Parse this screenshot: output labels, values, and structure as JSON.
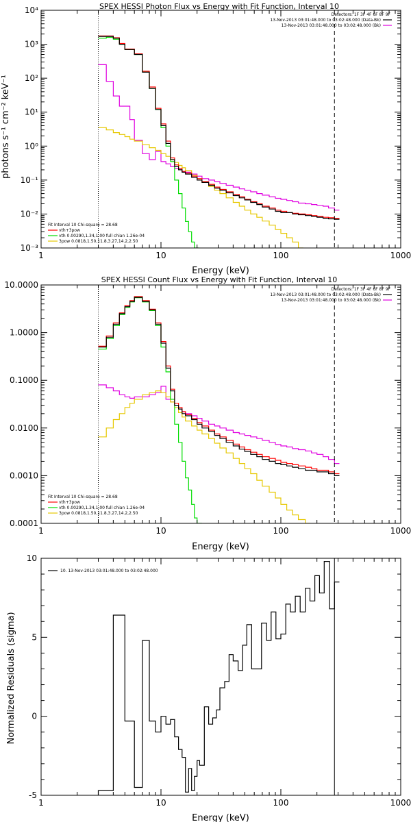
{
  "colors": {
    "data": "#000000",
    "total": "#ff0000",
    "thermal": "#00dd00",
    "nonthermal": "#e6c800",
    "background": "#e000e0",
    "frame": "#000000"
  },
  "chart_data": [
    {
      "type": "line",
      "title": "SPEX HESSI Photon Flux vs Energy with Fit Function, Interval 10",
      "xlabel": "Energy (keV)",
      "ylabel": "photons s⁻¹ cm⁻² keV⁻¹",
      "xscale": "log",
      "yscale": "log",
      "xlim": [
        1,
        1000
      ],
      "ylim": [
        0.001,
        10000
      ],
      "xticks": [
        "1",
        "10",
        "100",
        "1000"
      ],
      "yticks": [
        "10⁻³",
        "10⁻²",
        "10⁻¹",
        "10⁰",
        "10¹",
        "10²",
        "10³",
        "10⁴"
      ],
      "vlines": [
        {
          "x": 3,
          "style": "dotted"
        },
        {
          "x": 280,
          "style": "dashed"
        }
      ],
      "legend_top_right": [
        "Detectors: 1F 3F 4F 6F 8F 9F",
        "13-Nov-2013 03:01:48.000 to 03:02:48.000 (Data-Bk)",
        "13-Nov-2013 03:01:48.000 to 03:02:48.000 (Bk)"
      ],
      "legend_bottom_left": [
        "Fit Interval 10   Chi-square = 28.68",
        "vth+3pow",
        "vth 0.00290,1.34,1.00  full chian 1.26e-04",
        "3pow 0.0818,1.50,11.8,3.27,14.2,2.50"
      ],
      "series": [
        {
          "role": "data",
          "x": [
            3,
            3.5,
            4,
            4.5,
            5,
            5.5,
            6,
            7,
            8,
            9,
            10,
            11,
            12,
            13,
            14,
            15,
            16,
            18,
            20,
            22,
            25,
            28,
            31,
            35,
            40,
            45,
            50,
            56,
            63,
            70,
            80,
            90,
            100,
            112,
            125,
            140,
            160,
            180,
            200,
            225,
            250,
            280
          ],
          "values": [
            1700,
            1700,
            1500,
            1000,
            700,
            700,
            500,
            150,
            50,
            12,
            4,
            1.2,
            0.4,
            0.25,
            0.2,
            0.17,
            0.15,
            0.12,
            0.1,
            0.085,
            0.07,
            0.058,
            0.05,
            0.042,
            0.035,
            0.03,
            0.026,
            0.022,
            0.019,
            0.016,
            0.014,
            0.012,
            0.011,
            0.011,
            0.01,
            0.0095,
            0.009,
            0.0085,
            0.008,
            0.0075,
            0.0072,
            0.007
          ]
        },
        {
          "role": "total",
          "x": [
            3,
            3.5,
            4,
            4.5,
            5,
            5.5,
            6,
            7,
            8,
            9,
            10,
            11,
            12,
            13,
            14,
            15,
            16,
            18,
            20,
            22,
            25,
            28,
            31,
            35,
            40,
            45,
            50,
            56,
            63,
            70,
            80,
            90,
            100,
            112,
            125,
            140,
            160,
            180,
            200,
            225,
            250,
            280
          ],
          "values": [
            1750,
            1750,
            1550,
            1050,
            720,
            720,
            520,
            160,
            55,
            13,
            4.5,
            1.4,
            0.45,
            0.28,
            0.22,
            0.18,
            0.16,
            0.13,
            0.11,
            0.09,
            0.075,
            0.062,
            0.053,
            0.045,
            0.038,
            0.032,
            0.027,
            0.023,
            0.02,
            0.017,
            0.015,
            0.013,
            0.012,
            0.011,
            0.0105,
            0.01,
            0.0095,
            0.009,
            0.0085,
            0.008,
            0.0078,
            0.0075
          ]
        },
        {
          "role": "thermal",
          "x": [
            3,
            3.5,
            4,
            4.5,
            5,
            5.5,
            6,
            7,
            8,
            9,
            10,
            11,
            12,
            13,
            14,
            15,
            16,
            17,
            18,
            19
          ],
          "values": [
            1500,
            1600,
            1400,
            1000,
            700,
            700,
            500,
            150,
            50,
            12,
            3.5,
            1,
            0.35,
            0.1,
            0.04,
            0.015,
            0.006,
            0.003,
            0.0015,
            0.001
          ]
        },
        {
          "role": "nonthermal",
          "x": [
            3,
            3.5,
            4,
            4.5,
            5,
            5.5,
            6,
            7,
            8,
            9,
            10,
            11,
            12,
            13,
            14,
            15,
            16,
            18,
            20,
            22,
            25,
            28,
            31,
            35,
            40,
            45,
            50,
            56,
            63,
            70,
            80,
            90,
            100,
            112,
            125,
            140
          ],
          "values": [
            3.5,
            3,
            2.5,
            2.2,
            1.9,
            1.6,
            1.4,
            1.1,
            0.9,
            0.75,
            0.6,
            0.5,
            0.4,
            0.33,
            0.27,
            0.23,
            0.19,
            0.14,
            0.11,
            0.085,
            0.065,
            0.05,
            0.04,
            0.03,
            0.022,
            0.017,
            0.013,
            0.01,
            0.008,
            0.0062,
            0.0047,
            0.0035,
            0.0027,
            0.002,
            0.0015,
            0.001
          ]
        },
        {
          "role": "background",
          "x": [
            3,
            3.5,
            4,
            4.5,
            5,
            5.5,
            6,
            7,
            8,
            9,
            10,
            11,
            12,
            13,
            14,
            15,
            16,
            18,
            20,
            22,
            25,
            28,
            31,
            35,
            40,
            45,
            50,
            56,
            63,
            70,
            80,
            90,
            100,
            112,
            125,
            140,
            160,
            180,
            200,
            225,
            250,
            280
          ],
          "values": [
            250,
            80,
            30,
            15,
            15,
            6,
            1.5,
            0.6,
            0.4,
            0.7,
            0.35,
            0.3,
            0.25,
            0.22,
            0.2,
            0.18,
            0.17,
            0.15,
            0.13,
            0.11,
            0.1,
            0.09,
            0.08,
            0.07,
            0.062,
            0.055,
            0.05,
            0.045,
            0.04,
            0.036,
            0.032,
            0.029,
            0.027,
            0.025,
            0.023,
            0.021,
            0.02,
            0.019,
            0.018,
            0.017,
            0.015,
            0.013
          ]
        }
      ]
    },
    {
      "type": "line",
      "title": "SPEX HESSI Count Flux vs Energy with Fit Function, Interval 10",
      "xlabel": "Energy (keV)",
      "ylabel": "",
      "xscale": "log",
      "yscale": "log",
      "xlim": [
        1,
        1000
      ],
      "ylim": [
        0.0001,
        10
      ],
      "xticks": [
        "1",
        "10",
        "100",
        "1000"
      ],
      "yticks": [
        "0.0001",
        "0.0010",
        "0.0100",
        "0.1000",
        "1.0000",
        "10.0000"
      ],
      "vlines": [
        {
          "x": 3,
          "style": "dotted"
        },
        {
          "x": 280,
          "style": "dashed"
        }
      ],
      "legend_top_right": [
        "Detectors: 1F 3F 4F 6F 8F 9F",
        "13-Nov-2013 03:01:48.000 to 03:02:48.000 (Data-Bk)",
        "13-Nov-2013 03:01:48.000 to 03:02:48.000 (Bk)"
      ],
      "legend_bottom_left": [
        "Fit Interval 10   Chi-square = 28.68",
        "vth+3pow",
        "vth 0.00290,1.34,1.00  full chian 1.26e-04",
        "3pow 0.0818,1.50,11.8,3.27,14.2,2.50"
      ],
      "series": [
        {
          "role": "data",
          "x": [
            3,
            3.5,
            4,
            4.5,
            5,
            5.5,
            6,
            7,
            8,
            9,
            10,
            11,
            12,
            13,
            14,
            15,
            16,
            18,
            20,
            22,
            25,
            28,
            31,
            35,
            40,
            45,
            50,
            56,
            63,
            70,
            80,
            90,
            100,
            112,
            125,
            140,
            160,
            180,
            200,
            225,
            250,
            280
          ],
          "values": [
            0.5,
            0.8,
            1.5,
            2.5,
            3.5,
            4.5,
            5.5,
            4.5,
            3,
            1.5,
            0.6,
            0.18,
            0.06,
            0.03,
            0.025,
            0.02,
            0.018,
            0.015,
            0.012,
            0.01,
            0.0085,
            0.007,
            0.006,
            0.005,
            0.0042,
            0.0036,
            0.0032,
            0.0028,
            0.0025,
            0.0022,
            0.002,
            0.0018,
            0.0017,
            0.0016,
            0.0015,
            0.0014,
            0.0013,
            0.0013,
            0.0012,
            0.0012,
            0.0011,
            0.001
          ]
        },
        {
          "role": "total",
          "x": [
            3,
            3.5,
            4,
            4.5,
            5,
            5.5,
            6,
            7,
            8,
            9,
            10,
            11,
            12,
            13,
            14,
            15,
            16,
            18,
            20,
            22,
            25,
            28,
            31,
            35,
            40,
            45,
            50,
            56,
            63,
            70,
            80,
            90,
            100,
            112,
            125,
            140,
            160,
            180,
            200,
            225,
            250,
            280
          ],
          "values": [
            0.52,
            0.85,
            1.6,
            2.6,
            3.7,
            4.7,
            5.7,
            4.7,
            3.1,
            1.6,
            0.65,
            0.2,
            0.065,
            0.033,
            0.027,
            0.022,
            0.019,
            0.016,
            0.013,
            0.011,
            0.009,
            0.0075,
            0.0065,
            0.0055,
            0.0046,
            0.004,
            0.0035,
            0.0031,
            0.0028,
            0.0025,
            0.0023,
            0.0021,
            0.0019,
            0.0018,
            0.0017,
            0.0016,
            0.0015,
            0.0014,
            0.0013,
            0.0013,
            0.0012,
            0.0011
          ]
        },
        {
          "role": "thermal",
          "x": [
            3,
            3.5,
            4,
            4.5,
            5,
            5.5,
            6,
            7,
            8,
            9,
            10,
            11,
            12,
            13,
            14,
            15,
            16,
            17,
            18,
            19,
            20
          ],
          "values": [
            0.45,
            0.75,
            1.4,
            2.4,
            3.4,
            4.4,
            5.4,
            4.4,
            2.9,
            1.4,
            0.5,
            0.15,
            0.04,
            0.012,
            0.005,
            0.002,
            0.0009,
            0.0005,
            0.00025,
            0.00013,
            0.0001
          ]
        },
        {
          "role": "nonthermal",
          "x": [
            3,
            3.5,
            4,
            4.5,
            5,
            5.5,
            6,
            7,
            8,
            9,
            10,
            11,
            12,
            13,
            14,
            15,
            16,
            18,
            20,
            22,
            25,
            28,
            31,
            35,
            40,
            45,
            50,
            56,
            63,
            70,
            80,
            90,
            100,
            112,
            125,
            140,
            160
          ],
          "values": [
            0.0065,
            0.01,
            0.015,
            0.02,
            0.027,
            0.033,
            0.04,
            0.05,
            0.055,
            0.06,
            0.055,
            0.045,
            0.035,
            0.027,
            0.021,
            0.017,
            0.014,
            0.011,
            0.009,
            0.0075,
            0.006,
            0.0048,
            0.0038,
            0.003,
            0.0023,
            0.0018,
            0.0014,
            0.0011,
            0.0008,
            0.0006,
            0.00045,
            0.00034,
            0.00025,
            0.00019,
            0.00015,
            0.00012,
            0.0001
          ]
        },
        {
          "role": "background",
          "x": [
            3,
            3.5,
            4,
            4.5,
            5,
            5.5,
            6,
            7,
            8,
            9,
            10,
            11,
            12,
            13,
            14,
            15,
            16,
            18,
            20,
            22,
            25,
            28,
            31,
            35,
            40,
            45,
            50,
            56,
            63,
            70,
            80,
            90,
            100,
            112,
            125,
            140,
            160,
            180,
            200,
            225,
            250,
            280
          ],
          "values": [
            0.08,
            0.07,
            0.06,
            0.05,
            0.045,
            0.042,
            0.045,
            0.045,
            0.05,
            0.055,
            0.075,
            0.04,
            0.035,
            0.03,
            0.025,
            0.022,
            0.02,
            0.018,
            0.016,
            0.014,
            0.012,
            0.011,
            0.01,
            0.009,
            0.008,
            0.0075,
            0.007,
            0.0065,
            0.006,
            0.0055,
            0.005,
            0.0045,
            0.0042,
            0.004,
            0.0037,
            0.0035,
            0.0033,
            0.003,
            0.0028,
            0.0025,
            0.0022,
            0.0018
          ]
        }
      ]
    },
    {
      "type": "line",
      "title": "",
      "xlabel": "Energy (keV)",
      "ylabel": "Normalized Residuals (sigma)",
      "xscale": "log",
      "yscale": "linear",
      "xlim": [
        1,
        1000
      ],
      "ylim": [
        -5,
        10
      ],
      "xticks": [
        "1",
        "10",
        "100",
        "1000"
      ],
      "yticks": [
        "-5",
        "0",
        "5",
        "10"
      ],
      "vlines": [
        {
          "x": 280,
          "style": "solid"
        }
      ],
      "legend_top_left": [
        "10. 13-Nov-2013 03:01:48.000 to 03:02:48.000"
      ],
      "series": [
        {
          "role": "residual",
          "x": [
            3,
            4,
            5,
            6,
            7,
            8,
            9,
            10,
            11,
            12,
            13,
            14,
            15,
            16,
            17,
            18,
            19,
            20,
            21,
            23,
            25,
            27,
            29,
            31,
            34,
            37,
            40,
            44,
            48,
            52,
            57,
            63,
            69,
            76,
            83,
            91,
            100,
            110,
            120,
            132,
            145,
            160,
            175,
            192,
            210,
            230,
            255,
            280
          ],
          "values": [
            -4.7,
            6.4,
            -0.3,
            -4.5,
            4.8,
            -0.3,
            -1,
            0,
            -0.5,
            -0.2,
            -1.3,
            -2.1,
            -2.6,
            -4.8,
            -3.3,
            -4.7,
            -3.8,
            -2.8,
            -3.1,
            0.6,
            -0.5,
            -0.1,
            0.4,
            1.8,
            2.2,
            3.9,
            3.5,
            2.9,
            4.5,
            5.8,
            3,
            3,
            5.9,
            4.8,
            6.6,
            4.9,
            5.2,
            7.1,
            6.6,
            7.6,
            6.6,
            8.1,
            7.3,
            8.9,
            7.8,
            9.8,
            6.8,
            8.5
          ]
        }
      ]
    }
  ]
}
